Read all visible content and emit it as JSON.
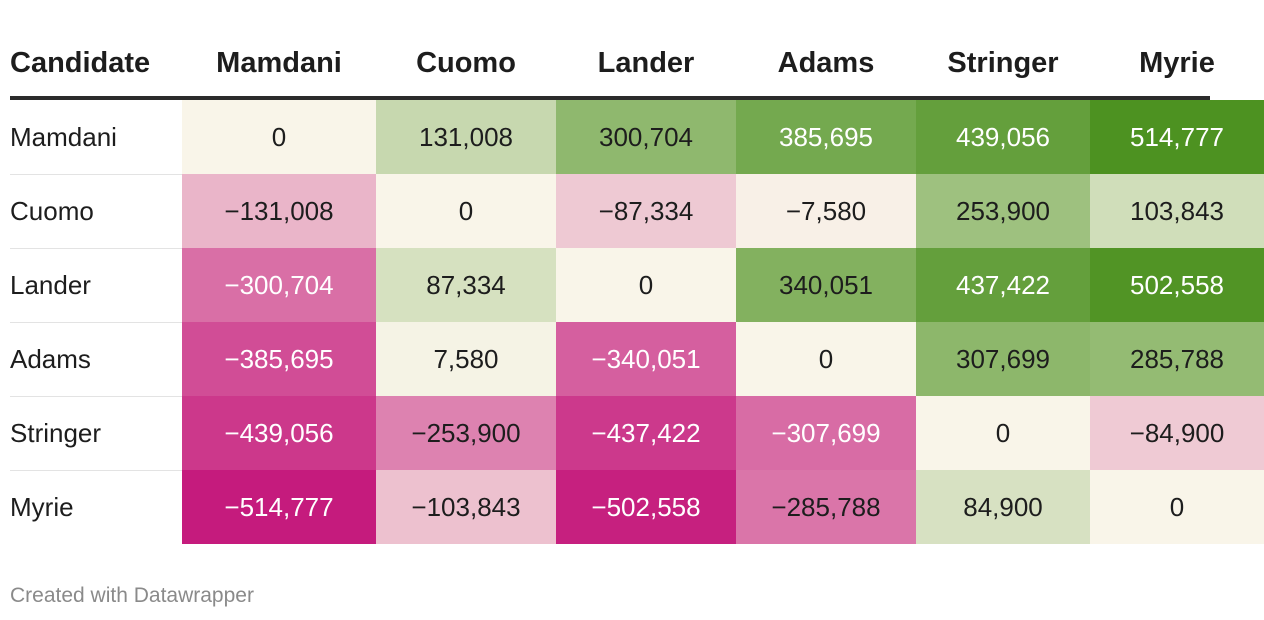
{
  "chart_data": {
    "type": "heatmap",
    "corner_label": "Candidate",
    "columns": [
      "Mamdani",
      "Cuomo",
      "Lander",
      "Adams",
      "Stringer",
      "Myrie"
    ],
    "rows": [
      {
        "label": "Mamdani",
        "values": [
          0,
          131008,
          300704,
          385695,
          439056,
          514777
        ],
        "display": [
          "0",
          "131,008",
          "300,704",
          "385,695",
          "439,056",
          "514,777"
        ]
      },
      {
        "label": "Cuomo",
        "values": [
          -131008,
          0,
          -87334,
          -7580,
          253900,
          103843
        ],
        "display": [
          "−131,008",
          "0",
          "−87,334",
          "−7,580",
          "253,900",
          "103,843"
        ]
      },
      {
        "label": "Lander",
        "values": [
          -300704,
          87334,
          0,
          340051,
          437422,
          502558
        ],
        "display": [
          "−300,704",
          "87,334",
          "0",
          "340,051",
          "437,422",
          "502,558"
        ]
      },
      {
        "label": "Adams",
        "values": [
          -385695,
          7580,
          -340051,
          0,
          307699,
          285788
        ],
        "display": [
          "−385,695",
          "7,580",
          "−340,051",
          "0",
          "307,699",
          "285,788"
        ]
      },
      {
        "label": "Stringer",
        "values": [
          -439056,
          -253900,
          -437422,
          -307699,
          0,
          -84900
        ],
        "display": [
          "−439,056",
          "−253,900",
          "−437,422",
          "−307,699",
          "0",
          "−84,900"
        ]
      },
      {
        "label": "Myrie",
        "values": [
          -514777,
          -103843,
          -502558,
          -285788,
          84900,
          0
        ],
        "display": [
          "−514,777",
          "−103,843",
          "−502,558",
          "−285,788",
          "84,900",
          "0"
        ]
      }
    ],
    "color_scale": {
      "negative_max": "#c51b7d",
      "neutral": "#f9f5e9",
      "positive_max": "#4d9221",
      "domain": [
        -514777,
        0,
        514777
      ]
    }
  },
  "footer": {
    "credit": "Created with Datawrapper"
  }
}
